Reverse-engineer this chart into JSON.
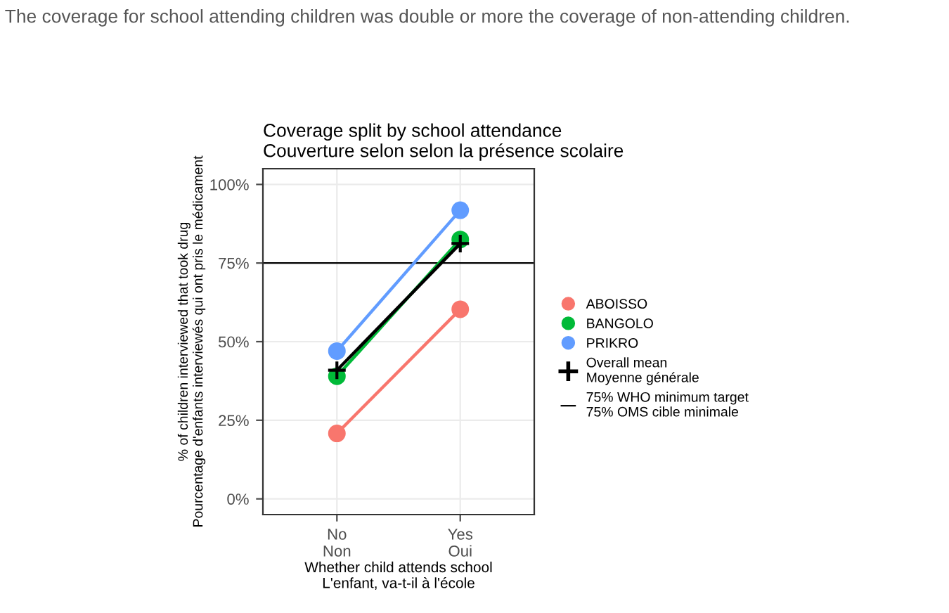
{
  "chart_data": {
    "type": "line",
    "title": "Coverage split by school attendance\nCouverture selon selon la présence scolaire",
    "xlabel": "Whether child attends school\nL'enfant, va-t-il à l'école",
    "ylabel": "% of children interviewed that took drug\nPourcentage d'enfants interviewés qui ont pris le médicament",
    "annotations": [
      "The coverage for school attending children was double or more the coverage of non-attending children."
    ],
    "categories": [
      "No\nNon",
      "Yes\nOui"
    ],
    "series": [
      {
        "name": "ABOISSO",
        "color": "#f8766d",
        "values": [
          20.8,
          60.3
        ],
        "marker": "circle"
      },
      {
        "name": "BANGOLO",
        "color": "#00ba38",
        "values": [
          39,
          82.5
        ],
        "marker": "circle"
      },
      {
        "name": "PRIKRO",
        "color": "#619cff",
        "values": [
          47,
          91.8
        ],
        "marker": "circle"
      },
      {
        "name": "Overall mean\nMoyenne générale",
        "color": "#000000",
        "values": [
          40.9,
          81.2
        ],
        "marker": "cross"
      }
    ],
    "ylim": [
      -5,
      105
    ],
    "yticks": [
      {
        "value": 0,
        "label": "0%"
      },
      {
        "value": 25,
        "label": "25%"
      },
      {
        "value": 50,
        "label": "50%"
      },
      {
        "value": 75,
        "label": "75%"
      },
      {
        "value": 100,
        "label": "100%"
      }
    ],
    "ref_lines": [
      {
        "axis": "y",
        "value": 75,
        "label": "75% WHO minimum target\n75% OMS cible minimale",
        "color": "#000000",
        "line_style": "solid"
      }
    ],
    "grid": true,
    "legend": "right",
    "line_style": "solid"
  }
}
